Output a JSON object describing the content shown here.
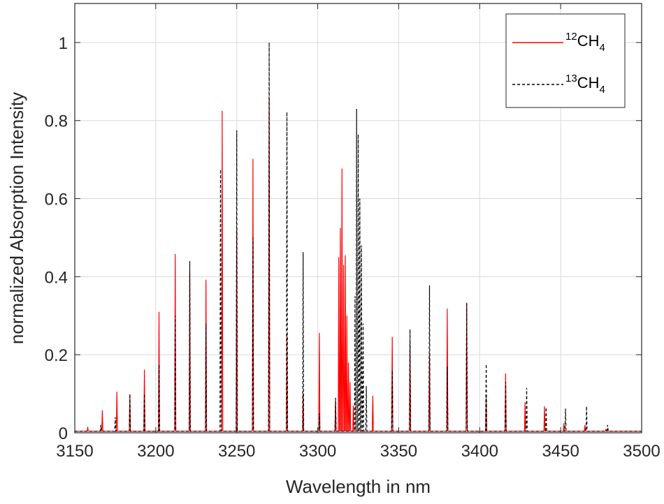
{
  "chart_data": {
    "type": "line",
    "title": "",
    "xlabel": "Wavelength in nm",
    "ylabel": "normalized Absorption Intensity",
    "xlim": [
      3150,
      3500
    ],
    "ylim": [
      0,
      1.1
    ],
    "xticks": [
      3150,
      3200,
      3250,
      3300,
      3350,
      3400,
      3450,
      3500
    ],
    "yticks": [
      0,
      0.2,
      0.4,
      0.6,
      0.8,
      1
    ],
    "xtick_labels": [
      "3150",
      "3200",
      "3250",
      "3300",
      "3350",
      "3400",
      "3450",
      "3500"
    ],
    "ytick_labels": [
      "0",
      "0.2",
      "0.4",
      "0.6",
      "0.8",
      "1"
    ],
    "grid": true,
    "legend_position": "top-right",
    "colors": {
      "ch4_12": "#ff0000",
      "ch4_13": "#000000",
      "grid": "#d9d9d9",
      "axis": "#262626"
    },
    "series": [
      {
        "name": "12CH4",
        "legend": {
          "sup": "12",
          "base": "CH",
          "sub": "4"
        },
        "style": "solid",
        "peaks": [
          {
            "x": 3158,
            "y": 0.015
          },
          {
            "x": 3167,
            "y": 0.058
          },
          {
            "x": 3176,
            "y": 0.105
          },
          {
            "x": 3184,
            "y": 0.098
          },
          {
            "x": 3193,
            "y": 0.162
          },
          {
            "x": 3202,
            "y": 0.31
          },
          {
            "x": 3212,
            "y": 0.458
          },
          {
            "x": 3221,
            "y": 0.41
          },
          {
            "x": 3231,
            "y": 0.392
          },
          {
            "x": 3241,
            "y": 0.825
          },
          {
            "x": 3250,
            "y": 0.52
          },
          {
            "x": 3260,
            "y": 0.702
          },
          {
            "x": 3270,
            "y": 0.855
          },
          {
            "x": 3281,
            "y": 0.25
          },
          {
            "x": 3291,
            "y": 0.1
          },
          {
            "x": 3301,
            "y": 0.256
          },
          {
            "x": 3311,
            "y": 0.08
          },
          {
            "x": 3313,
            "y": 0.45
          },
          {
            "x": 3314,
            "y": 0.525
          },
          {
            "x": 3315,
            "y": 0.677
          },
          {
            "x": 3316,
            "y": 0.43
          },
          {
            "x": 3317,
            "y": 0.455
          },
          {
            "x": 3318,
            "y": 0.3
          },
          {
            "x": 3319,
            "y": 0.18
          },
          {
            "x": 3320,
            "y": 0.13
          },
          {
            "x": 3322,
            "y": 0.07
          },
          {
            "x": 3334,
            "y": 0.095
          },
          {
            "x": 3346,
            "y": 0.246
          },
          {
            "x": 3357,
            "y": 0.232
          },
          {
            "x": 3369,
            "y": 0.2
          },
          {
            "x": 3380,
            "y": 0.318
          },
          {
            "x": 3392,
            "y": 0.33
          },
          {
            "x": 3404,
            "y": 0.095
          },
          {
            "x": 3416,
            "y": 0.152
          },
          {
            "x": 3428,
            "y": 0.078
          },
          {
            "x": 3440,
            "y": 0.068
          },
          {
            "x": 3452,
            "y": 0.025
          },
          {
            "x": 3465,
            "y": 0.02
          },
          {
            "x": 3478,
            "y": 0.01
          }
        ]
      },
      {
        "name": "13CH4",
        "legend": {
          "sup": "13",
          "base": "CH",
          "sub": "4"
        },
        "style": "dashed",
        "peaks": [
          {
            "x": 3166,
            "y": 0.02
          },
          {
            "x": 3175,
            "y": 0.04
          },
          {
            "x": 3184,
            "y": 0.1
          },
          {
            "x": 3193,
            "y": 0.1
          },
          {
            "x": 3202,
            "y": 0.175
          },
          {
            "x": 3212,
            "y": 0.3
          },
          {
            "x": 3221,
            "y": 0.44
          },
          {
            "x": 3231,
            "y": 0.28
          },
          {
            "x": 3240,
            "y": 0.675
          },
          {
            "x": 3250,
            "y": 0.775
          },
          {
            "x": 3260,
            "y": 0.5
          },
          {
            "x": 3270,
            "y": 1.0
          },
          {
            "x": 3281,
            "y": 0.822
          },
          {
            "x": 3291,
            "y": 0.463
          },
          {
            "x": 3301,
            "y": 0.05
          },
          {
            "x": 3311,
            "y": 0.09
          },
          {
            "x": 3323,
            "y": 0.35
          },
          {
            "x": 3324,
            "y": 0.83
          },
          {
            "x": 3325,
            "y": 0.765
          },
          {
            "x": 3326,
            "y": 0.6
          },
          {
            "x": 3327,
            "y": 0.48
          },
          {
            "x": 3328,
            "y": 0.28
          },
          {
            "x": 3330,
            "y": 0.12
          },
          {
            "x": 3346,
            "y": 0.16
          },
          {
            "x": 3357,
            "y": 0.265
          },
          {
            "x": 3369,
            "y": 0.378
          },
          {
            "x": 3380,
            "y": 0.17
          },
          {
            "x": 3392,
            "y": 0.334
          },
          {
            "x": 3404,
            "y": 0.176
          },
          {
            "x": 3416,
            "y": 0.13
          },
          {
            "x": 3429,
            "y": 0.115
          },
          {
            "x": 3441,
            "y": 0.065
          },
          {
            "x": 3453,
            "y": 0.062
          },
          {
            "x": 3466,
            "y": 0.068
          },
          {
            "x": 3479,
            "y": 0.02
          }
        ]
      }
    ]
  }
}
